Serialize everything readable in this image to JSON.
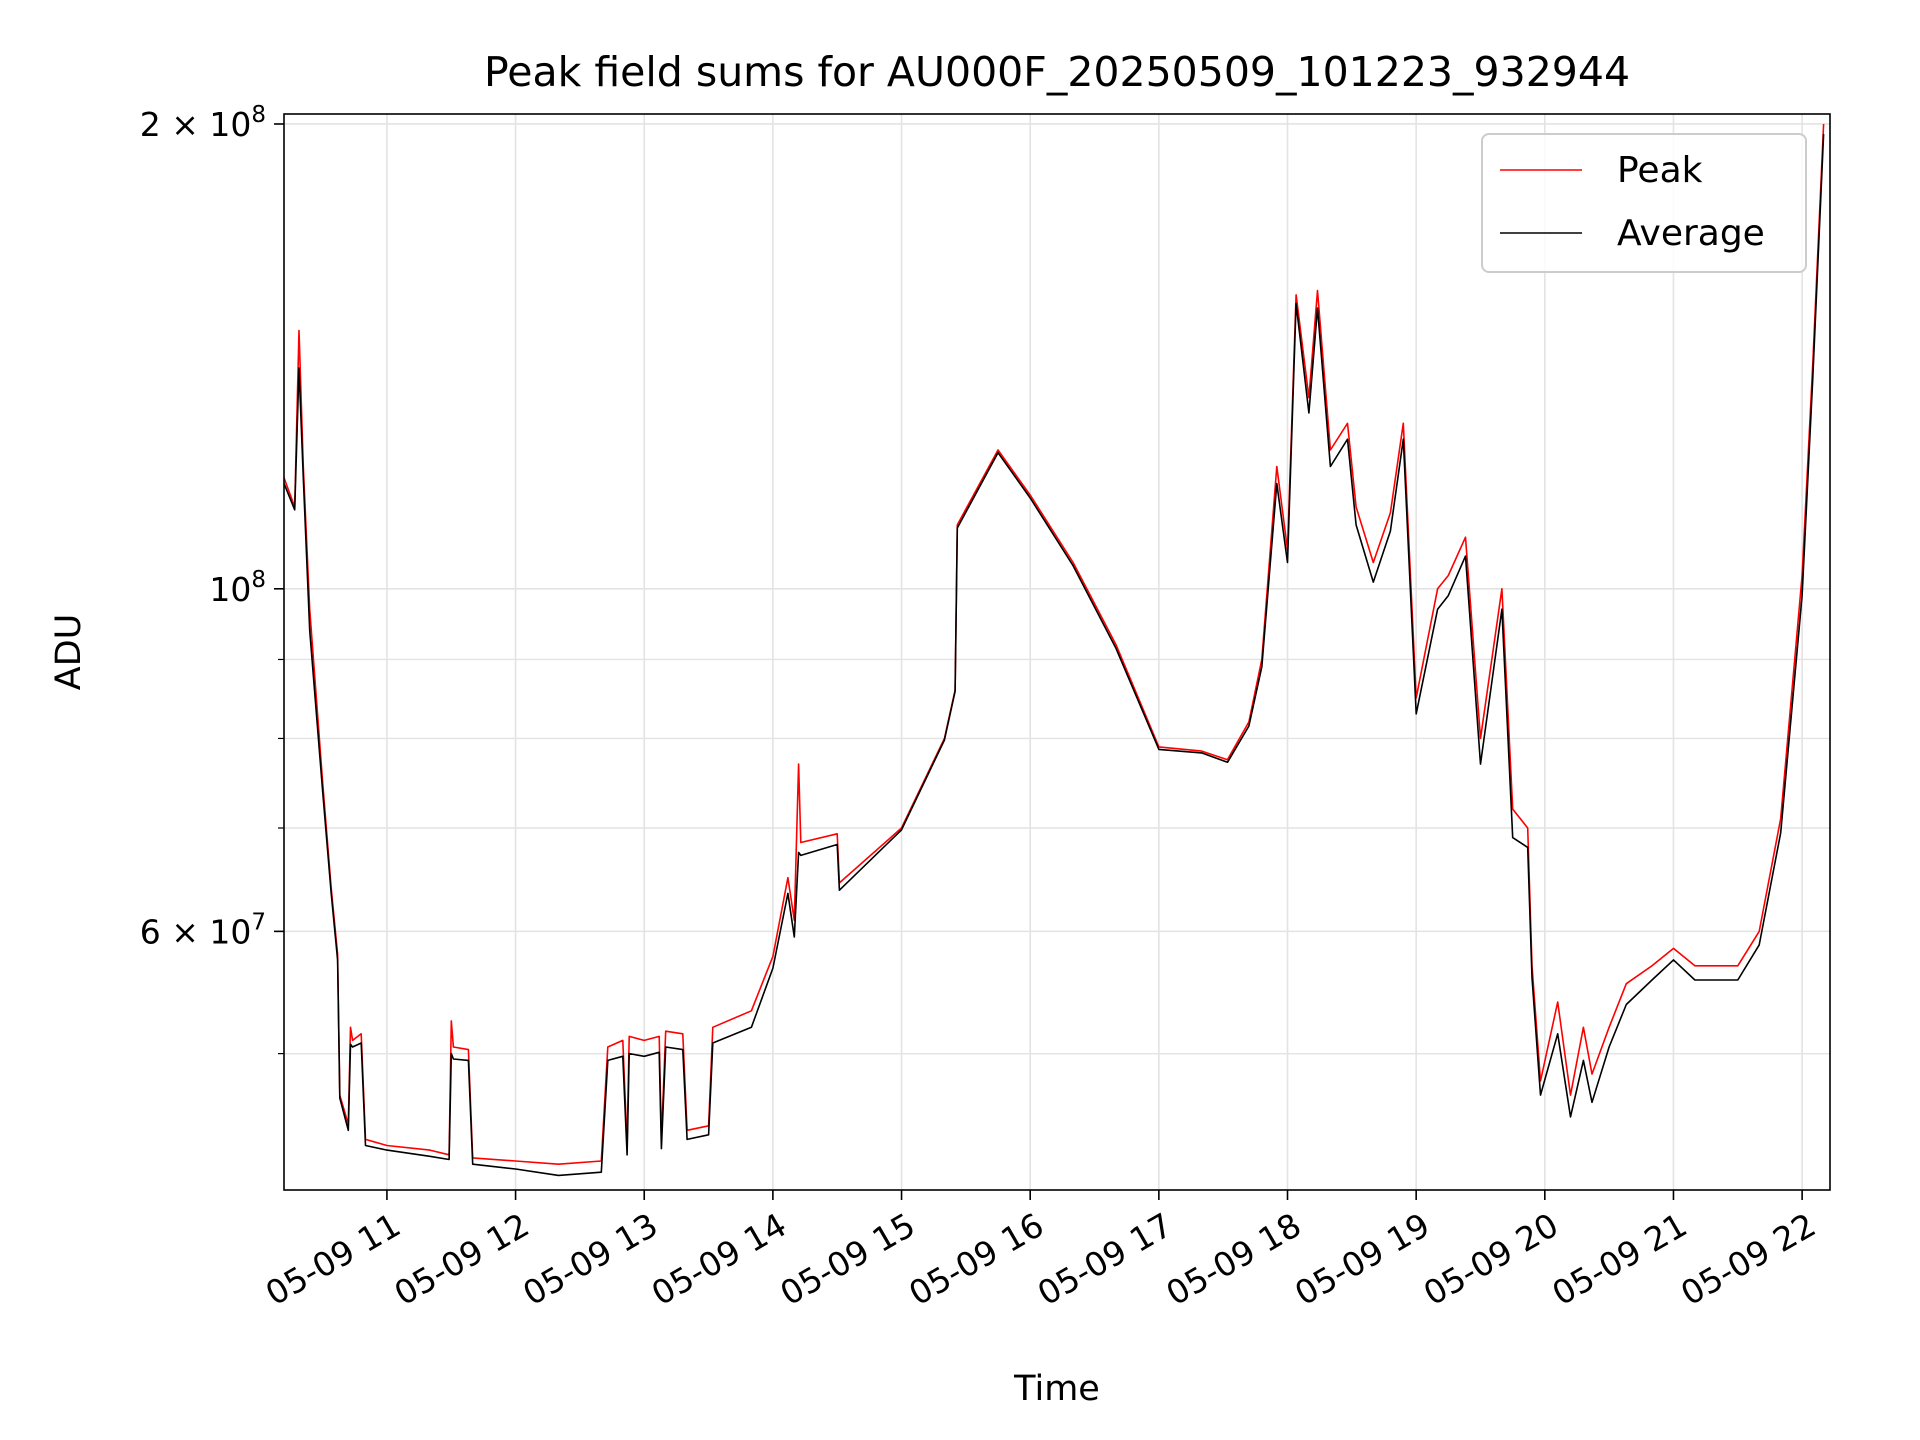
{
  "chart_data": {
    "type": "line",
    "title": "Peak field sums for AU000F_20250509_101223_932944",
    "xlabel": "Time",
    "ylabel": "ADU",
    "yscale": "log",
    "grid": true,
    "legend_position": "top-right",
    "xlim": [
      "2025-05-09 10:12",
      "2025-05-09 22:13"
    ],
    "ylim": [
      40800000,
      203000000
    ],
    "x_ticks": [
      {
        "t": "2025-05-09 11:00",
        "label": "05-09 11"
      },
      {
        "t": "2025-05-09 12:00",
        "label": "05-09 12"
      },
      {
        "t": "2025-05-09 13:00",
        "label": "05-09 13"
      },
      {
        "t": "2025-05-09 14:00",
        "label": "05-09 14"
      },
      {
        "t": "2025-05-09 15:00",
        "label": "05-09 15"
      },
      {
        "t": "2025-05-09 16:00",
        "label": "05-09 16"
      },
      {
        "t": "2025-05-09 17:00",
        "label": "05-09 17"
      },
      {
        "t": "2025-05-09 18:00",
        "label": "05-09 18"
      },
      {
        "t": "2025-05-09 19:00",
        "label": "05-09 19"
      },
      {
        "t": "2025-05-09 20:00",
        "label": "05-09 20"
      },
      {
        "t": "2025-05-09 21:00",
        "label": "05-09 21"
      },
      {
        "t": "2025-05-09 22:00",
        "label": "05-09 22"
      }
    ],
    "y_major_ticks": [
      {
        "value": 60000000,
        "mantissa": "6",
        "exp": "7"
      },
      {
        "value": 100000000,
        "mantissa": "",
        "exp": "8"
      },
      {
        "value": 200000000,
        "mantissa": "2",
        "exp": "8"
      }
    ],
    "y_minor_ticks": [
      50000000,
      70000000,
      80000000,
      90000000
    ],
    "series": [
      {
        "name": "Peak",
        "color": "#ff0000",
        "points": [
          [
            "2025-05-09 10:12",
            118000000
          ],
          [
            "2025-05-09 10:17",
            113000000
          ],
          [
            "2025-05-09 10:19",
            147000000
          ],
          [
            "2025-05-09 10:21",
            120000000
          ],
          [
            "2025-05-09 10:24",
            97000000
          ],
          [
            "2025-05-09 10:30",
            75000000
          ],
          [
            "2025-05-09 10:34",
            64000000
          ],
          [
            "2025-05-09 10:37",
            58000000
          ],
          [
            "2025-05-09 10:38",
            47000000
          ],
          [
            "2025-05-09 10:42",
            45000000
          ],
          [
            "2025-05-09 10:43",
            52000000
          ],
          [
            "2025-05-09 10:44",
            51000000
          ],
          [
            "2025-05-09 10:48",
            51500000
          ],
          [
            "2025-05-09 10:50",
            44000000
          ],
          [
            "2025-05-09 11:00",
            43600000
          ],
          [
            "2025-05-09 11:20",
            43300000
          ],
          [
            "2025-05-09 11:29",
            43000000
          ],
          [
            "2025-05-09 11:30",
            52500000
          ],
          [
            "2025-05-09 11:31",
            50500000
          ],
          [
            "2025-05-09 11:38",
            50300000
          ],
          [
            "2025-05-09 11:40",
            42800000
          ],
          [
            "2025-05-09 12:00",
            42600000
          ],
          [
            "2025-05-09 12:20",
            42400000
          ],
          [
            "2025-05-09 12:40",
            42600000
          ],
          [
            "2025-05-09 12:43",
            50500000
          ],
          [
            "2025-05-09 12:50",
            51000000
          ],
          [
            "2025-05-09 12:52",
            43600000
          ],
          [
            "2025-05-09 12:53",
            51300000
          ],
          [
            "2025-05-09 13:00",
            51000000
          ],
          [
            "2025-05-09 13:07",
            51300000
          ],
          [
            "2025-05-09 13:08",
            44000000
          ],
          [
            "2025-05-09 13:10",
            51700000
          ],
          [
            "2025-05-09 13:18",
            51500000
          ],
          [
            "2025-05-09 13:20",
            44600000
          ],
          [
            "2025-05-09 13:30",
            44900000
          ],
          [
            "2025-05-09 13:32",
            52000000
          ],
          [
            "2025-05-09 13:50",
            53300000
          ],
          [
            "2025-05-09 14:00",
            57800000
          ],
          [
            "2025-05-09 14:07",
            65000000
          ],
          [
            "2025-05-09 14:10",
            61000000
          ],
          [
            "2025-05-09 14:12",
            77000000
          ],
          [
            "2025-05-09 14:13",
            68500000
          ],
          [
            "2025-05-09 14:30",
            69400000
          ],
          [
            "2025-05-09 14:31",
            64500000
          ],
          [
            "2025-05-09 15:00",
            70000000
          ],
          [
            "2025-05-09 15:20",
            80000000
          ],
          [
            "2025-05-09 15:25",
            86000000
          ],
          [
            "2025-05-09 15:26",
            110000000
          ],
          [
            "2025-05-09 15:45",
            123000000
          ],
          [
            "2025-05-09 16:00",
            115000000
          ],
          [
            "2025-05-09 16:20",
            104000000
          ],
          [
            "2025-05-09 16:40",
            92000000
          ],
          [
            "2025-05-09 17:00",
            79000000
          ],
          [
            "2025-05-09 17:20",
            78500000
          ],
          [
            "2025-05-09 17:32",
            77500000
          ],
          [
            "2025-05-09 17:42",
            82000000
          ],
          [
            "2025-05-09 17:48",
            90000000
          ],
          [
            "2025-05-09 17:55",
            120000000
          ],
          [
            "2025-05-09 18:00",
            106000000
          ],
          [
            "2025-05-09 18:04",
            155000000
          ],
          [
            "2025-05-09 18:10",
            133000000
          ],
          [
            "2025-05-09 18:14",
            156000000
          ],
          [
            "2025-05-09 18:20",
            123000000
          ],
          [
            "2025-05-09 18:28",
            128000000
          ],
          [
            "2025-05-09 18:32",
            113000000
          ],
          [
            "2025-05-09 18:40",
            104000000
          ],
          [
            "2025-05-09 18:48",
            112000000
          ],
          [
            "2025-05-09 18:54",
            128000000
          ],
          [
            "2025-05-09 19:00",
            85000000
          ],
          [
            "2025-05-09 19:10",
            100000000
          ],
          [
            "2025-05-09 19:15",
            102000000
          ],
          [
            "2025-05-09 19:23",
            108000000
          ],
          [
            "2025-05-09 19:30",
            80000000
          ],
          [
            "2025-05-09 19:40",
            100000000
          ],
          [
            "2025-05-09 19:45",
            72000000
          ],
          [
            "2025-05-09 19:52",
            70000000
          ],
          [
            "2025-05-09 19:54",
            57000000
          ],
          [
            "2025-05-09 19:58",
            48000000
          ],
          [
            "2025-05-09 20:06",
            54000000
          ],
          [
            "2025-05-09 20:12",
            47000000
          ],
          [
            "2025-05-09 20:18",
            52000000
          ],
          [
            "2025-05-09 20:22",
            48500000
          ],
          [
            "2025-05-09 20:30",
            52000000
          ],
          [
            "2025-05-09 20:38",
            55500000
          ],
          [
            "2025-05-09 20:50",
            57000000
          ],
          [
            "2025-05-09 21:00",
            58500000
          ],
          [
            "2025-05-09 21:10",
            57000000
          ],
          [
            "2025-05-09 21:30",
            57000000
          ],
          [
            "2025-05-09 21:40",
            60000000
          ],
          [
            "2025-05-09 21:50",
            71000000
          ],
          [
            "2025-05-09 22:00",
            102000000
          ],
          [
            "2025-05-09 22:05",
            140000000
          ],
          [
            "2025-05-09 22:10",
            200000000
          ]
        ]
      },
      {
        "name": "Average",
        "color": "#000000",
        "points": [
          [
            "2025-05-09 10:12",
            117000000
          ],
          [
            "2025-05-09 10:17",
            112500000
          ],
          [
            "2025-05-09 10:19",
            139000000
          ],
          [
            "2025-05-09 10:21",
            118000000
          ],
          [
            "2025-05-09 10:24",
            94000000
          ],
          [
            "2025-05-09 10:30",
            74000000
          ],
          [
            "2025-05-09 10:34",
            63500000
          ],
          [
            "2025-05-09 10:37",
            57500000
          ],
          [
            "2025-05-09 10:38",
            46800000
          ],
          [
            "2025-05-09 10:42",
            44600000
          ],
          [
            "2025-05-09 10:43",
            50700000
          ],
          [
            "2025-05-09 10:44",
            50500000
          ],
          [
            "2025-05-09 10:48",
            50800000
          ],
          [
            "2025-05-09 10:50",
            43600000
          ],
          [
            "2025-05-09 11:00",
            43300000
          ],
          [
            "2025-05-09 11:20",
            42900000
          ],
          [
            "2025-05-09 11:29",
            42700000
          ],
          [
            "2025-05-09 11:30",
            50000000
          ],
          [
            "2025-05-09 11:31",
            49600000
          ],
          [
            "2025-05-09 11:38",
            49500000
          ],
          [
            "2025-05-09 11:40",
            42400000
          ],
          [
            "2025-05-09 12:00",
            42100000
          ],
          [
            "2025-05-09 12:20",
            41700000
          ],
          [
            "2025-05-09 12:40",
            41900000
          ],
          [
            "2025-05-09 12:43",
            49500000
          ],
          [
            "2025-05-09 12:50",
            49800000
          ],
          [
            "2025-05-09 12:52",
            43000000
          ],
          [
            "2025-05-09 12:53",
            50000000
          ],
          [
            "2025-05-09 13:00",
            49800000
          ],
          [
            "2025-05-09 13:07",
            50100000
          ],
          [
            "2025-05-09 13:08",
            43400000
          ],
          [
            "2025-05-09 13:10",
            50500000
          ],
          [
            "2025-05-09 13:18",
            50300000
          ],
          [
            "2025-05-09 13:20",
            44000000
          ],
          [
            "2025-05-09 13:30",
            44300000
          ],
          [
            "2025-05-09 13:32",
            50800000
          ],
          [
            "2025-05-09 13:50",
            52000000
          ],
          [
            "2025-05-09 14:00",
            56800000
          ],
          [
            "2025-05-09 14:07",
            63500000
          ],
          [
            "2025-05-09 14:10",
            59500000
          ],
          [
            "2025-05-09 14:12",
            67500000
          ],
          [
            "2025-05-09 14:13",
            67200000
          ],
          [
            "2025-05-09 14:30",
            68300000
          ],
          [
            "2025-05-09 14:31",
            63800000
          ],
          [
            "2025-05-09 15:00",
            69800000
          ],
          [
            "2025-05-09 15:20",
            79800000
          ],
          [
            "2025-05-09 15:25",
            85800000
          ],
          [
            "2025-05-09 15:26",
            109500000
          ],
          [
            "2025-05-09 15:45",
            122500000
          ],
          [
            "2025-05-09 16:00",
            114500000
          ],
          [
            "2025-05-09 16:20",
            103500000
          ],
          [
            "2025-05-09 16:40",
            91500000
          ],
          [
            "2025-05-09 17:00",
            78700000
          ],
          [
            "2025-05-09 17:20",
            78300000
          ],
          [
            "2025-05-09 17:32",
            77200000
          ],
          [
            "2025-05-09 17:42",
            81500000
          ],
          [
            "2025-05-09 17:48",
            89000000
          ],
          [
            "2025-05-09 17:55",
            117000000
          ],
          [
            "2025-05-09 18:00",
            104000000
          ],
          [
            "2025-05-09 18:04",
            153000000
          ],
          [
            "2025-05-09 18:10",
            130000000
          ],
          [
            "2025-05-09 18:14",
            152000000
          ],
          [
            "2025-05-09 18:20",
            120000000
          ],
          [
            "2025-05-09 18:28",
            125000000
          ],
          [
            "2025-05-09 18:32",
            110000000
          ],
          [
            "2025-05-09 18:40",
            101000000
          ],
          [
            "2025-05-09 18:48",
            109000000
          ],
          [
            "2025-05-09 18:54",
            125000000
          ],
          [
            "2025-05-09 19:00",
            83000000
          ],
          [
            "2025-05-09 19:10",
            97000000
          ],
          [
            "2025-05-09 19:15",
            99000000
          ],
          [
            "2025-05-09 19:23",
            105000000
          ],
          [
            "2025-05-09 19:30",
            77000000
          ],
          [
            "2025-05-09 19:40",
            97000000
          ],
          [
            "2025-05-09 19:45",
            69000000
          ],
          [
            "2025-05-09 19:52",
            68000000
          ],
          [
            "2025-05-09 19:54",
            56000000
          ],
          [
            "2025-05-09 19:58",
            47000000
          ],
          [
            "2025-05-09 20:06",
            51500000
          ],
          [
            "2025-05-09 20:12",
            45500000
          ],
          [
            "2025-05-09 20:18",
            49500000
          ],
          [
            "2025-05-09 20:22",
            46500000
          ],
          [
            "2025-05-09 20:30",
            50500000
          ],
          [
            "2025-05-09 20:38",
            53800000
          ],
          [
            "2025-05-09 20:50",
            55800000
          ],
          [
            "2025-05-09 21:00",
            57500000
          ],
          [
            "2025-05-09 21:10",
            55800000
          ],
          [
            "2025-05-09 21:30",
            55800000
          ],
          [
            "2025-05-09 21:40",
            58800000
          ],
          [
            "2025-05-09 21:50",
            69500000
          ],
          [
            "2025-05-09 22:00",
            99000000
          ],
          [
            "2025-05-09 22:05",
            137000000
          ],
          [
            "2025-05-09 22:10",
            197000000
          ]
        ]
      }
    ]
  }
}
